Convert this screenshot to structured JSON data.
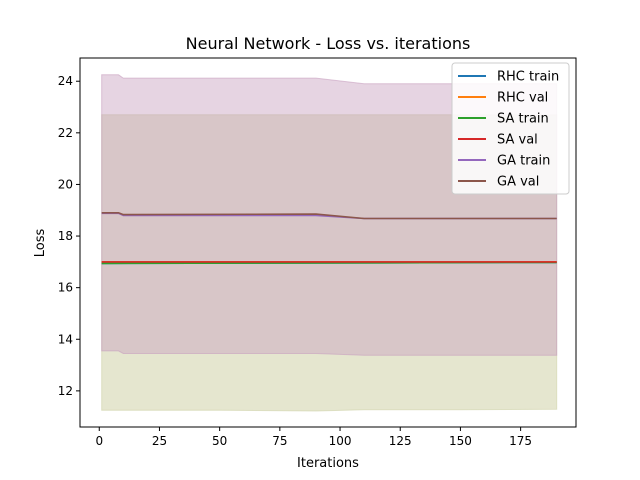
{
  "chart_data": {
    "type": "line",
    "title": "Neural Network - Loss vs. iterations",
    "xlabel": "Iterations",
    "ylabel": "Loss",
    "xlim": [
      -8,
      198
    ],
    "ylim": [
      10.6,
      24.9
    ],
    "xticks": [
      0,
      25,
      50,
      75,
      100,
      125,
      150,
      175
    ],
    "yticks": [
      12,
      14,
      16,
      18,
      20,
      22,
      24
    ],
    "grid": false,
    "legend_position": "top-right",
    "bands": [
      {
        "series": "RHC/SA",
        "color": "#cfd2a8",
        "opacity": 0.55,
        "x": [
          1,
          10,
          50,
          90,
          110,
          150,
          190
        ],
        "low": [
          11.25,
          11.25,
          11.25,
          11.22,
          11.27,
          11.27,
          11.29
        ],
        "high": [
          22.7,
          22.7,
          22.7,
          22.7,
          22.7,
          22.7,
          22.7
        ]
      },
      {
        "series": "GA",
        "color": "#c8a0bf",
        "opacity": 0.45,
        "x": [
          1,
          8,
          10,
          50,
          90,
          110,
          150,
          190
        ],
        "low": [
          13.55,
          13.55,
          13.45,
          13.45,
          13.45,
          13.38,
          13.38,
          13.38
        ],
        "high": [
          24.25,
          24.25,
          24.12,
          24.12,
          24.12,
          23.9,
          23.9,
          23.9
        ]
      }
    ],
    "series": [
      {
        "name": "RHC train",
        "color": "#1f77b4",
        "x": [
          1,
          190
        ],
        "y": [
          16.94,
          16.98
        ]
      },
      {
        "name": "RHC val",
        "color": "#ff7f0e",
        "x": [
          1,
          190
        ],
        "y": [
          17.0,
          17.0
        ]
      },
      {
        "name": "SA train",
        "color": "#2ca02c",
        "x": [
          1,
          190
        ],
        "y": [
          16.94,
          16.98
        ]
      },
      {
        "name": "SA val",
        "color": "#d62728",
        "x": [
          1,
          190
        ],
        "y": [
          17.0,
          17.0
        ]
      },
      {
        "name": "GA train",
        "color": "#9467bd",
        "x": [
          1,
          8,
          10,
          90,
          110,
          190
        ],
        "y": [
          18.88,
          18.88,
          18.8,
          18.8,
          18.68,
          18.68
        ]
      },
      {
        "name": "GA val",
        "color": "#8c564b",
        "x": [
          1,
          8,
          10,
          90,
          110,
          190
        ],
        "y": [
          18.9,
          18.9,
          18.83,
          18.85,
          18.68,
          18.68
        ]
      }
    ]
  }
}
